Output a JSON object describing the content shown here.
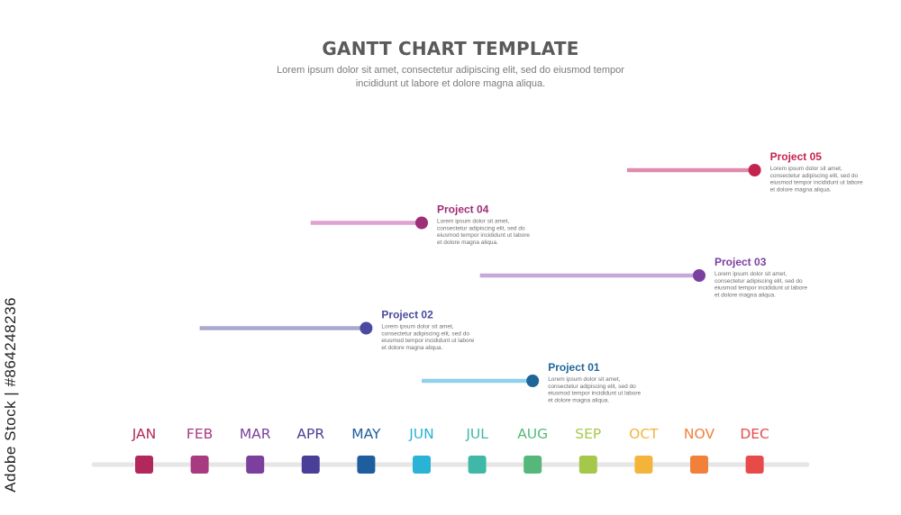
{
  "header": {
    "title": "GANTT CHART TEMPLATE",
    "subtitle": "Lorem ipsum dolor sit amet, consectetur adipiscing elit, sed do eiusmod tempor incididunt ut labore et dolore magna aliqua."
  },
  "watermark": "Adobe Stock | #864248236",
  "chart_data": {
    "type": "gantt",
    "title": "GANTT CHART TEMPLATE",
    "x_axis": {
      "categories": [
        "JAN",
        "FEB",
        "MAR",
        "APR",
        "MAY",
        "JUN",
        "JUL",
        "AUG",
        "SEP",
        "OCT",
        "NOV",
        "DEC"
      ],
      "colors": [
        "#b3285a",
        "#a83a7f",
        "#7b3f9e",
        "#4a3f98",
        "#1e5d9e",
        "#2ab3d4",
        "#3fb8a8",
        "#55b87a",
        "#a6c84a",
        "#f4b43c",
        "#f0803a",
        "#e84a4a"
      ]
    },
    "tasks": [
      {
        "name": "Project 05",
        "start": 8.7,
        "end": 11.0,
        "color": "#c4234f",
        "bar_color": "#e08aae",
        "description": [
          "Lorem ipsum dolor sit amet,",
          "consectetur adipiscing elit, sed do",
          "eiusmod tempor incididunt ut labore",
          "et dolore magna aliqua."
        ]
      },
      {
        "name": "Project 04",
        "start": 3.0,
        "end": 5.0,
        "color": "#9e2e77",
        "bar_color": "#dda0d0",
        "description": [
          "Lorem ipsum dolor sit amet,",
          "consectetur adipiscing elit, sed do",
          "eiusmod tempor incididunt ut labore",
          "et dolore magna aliqua."
        ]
      },
      {
        "name": "Project 03",
        "start": 6.05,
        "end": 10.0,
        "color": "#7b3fa0",
        "bar_color": "#c6a8d8",
        "description": [
          "Lorem ipsum dolor sit amet,",
          "consectetur adipiscing elit, sed do",
          "eiusmod tempor incididunt ut labore",
          "et dolore magna aliqua."
        ]
      },
      {
        "name": "Project 02",
        "start": 1.0,
        "end": 4.0,
        "color": "#4a4aa0",
        "bar_color": "#a9a9cf",
        "description": [
          "Lorem ipsum dolor sit amet,",
          "consectetur adipiscing elit, sed do",
          "eiusmod tempor incididunt ut labore",
          "et dolore magna aliqua."
        ]
      },
      {
        "name": "Project 01",
        "start": 5.0,
        "end": 7.0,
        "color": "#1e6699",
        "bar_color": "#8fd0ee",
        "description": [
          "Lorem ipsum dolor sit amet,",
          "consectetur adipiscing elit, sed do",
          "eiusmod tempor incididunt ut labore",
          "et dolore magna aliqua."
        ]
      }
    ]
  }
}
